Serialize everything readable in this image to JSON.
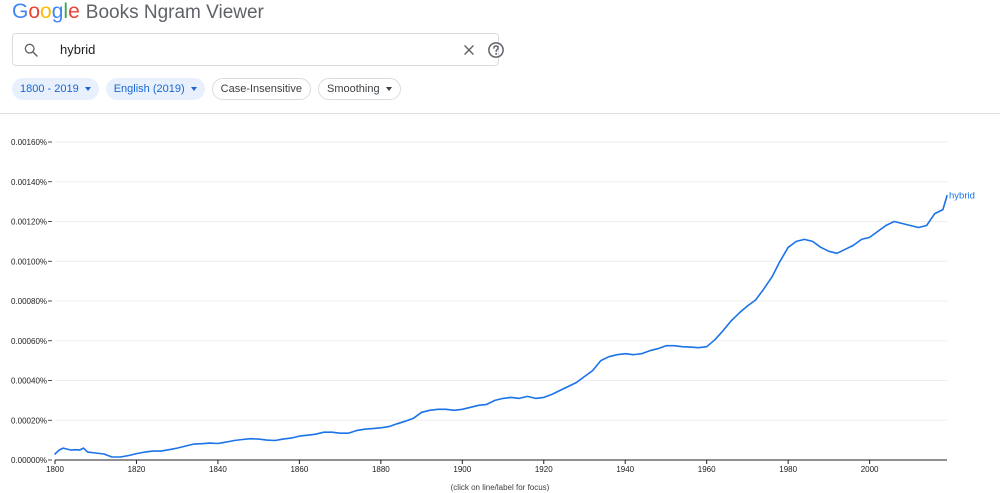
{
  "header": {
    "logo_letters": [
      {
        "ch": "G",
        "color": "#4285f4"
      },
      {
        "ch": "o",
        "color": "#ea4335"
      },
      {
        "ch": "o",
        "color": "#fbbc05"
      },
      {
        "ch": "g",
        "color": "#4285f4"
      },
      {
        "ch": "l",
        "color": "#34a853"
      },
      {
        "ch": "e",
        "color": "#ea4335"
      }
    ],
    "title_rest": "Books Ngram Viewer"
  },
  "search": {
    "query": "hybrid",
    "search_icon": "search-icon",
    "clear_icon": "close-icon",
    "help_icon": "help-icon"
  },
  "filters": {
    "year_range": "1800 - 2019",
    "corpus": "English (2019)",
    "case": "Case-Insensitive",
    "smoothing": "Smoothing"
  },
  "chart_data": {
    "type": "line",
    "title": "",
    "xlabel": "",
    "ylabel": "",
    "xlim": [
      1800,
      2019
    ],
    "ylim": [
      0,
      0.0016
    ],
    "x_ticks": [
      1800,
      1820,
      1840,
      1860,
      1880,
      1900,
      1920,
      1940,
      1960,
      1980,
      2000
    ],
    "y_ticks": [
      0,
      0.0002,
      0.0004,
      0.0006,
      0.0008,
      0.001,
      0.0012,
      0.0014,
      0.0016
    ],
    "y_tick_labels": [
      "0.00000%",
      "0.00020%",
      "0.00040%",
      "0.00060%",
      "0.00080%",
      "0.00100%",
      "0.00120%",
      "0.00140%",
      "0.00160%"
    ],
    "grid": true,
    "line_color": "#1a73e8",
    "series": [
      {
        "name": "hybrid",
        "x": [
          1800,
          1801,
          1802,
          1803,
          1804,
          1805,
          1806,
          1807,
          1808,
          1810,
          1812,
          1814,
          1816,
          1818,
          1820,
          1822,
          1824,
          1826,
          1828,
          1830,
          1832,
          1834,
          1836,
          1838,
          1840,
          1842,
          1844,
          1846,
          1848,
          1850,
          1852,
          1854,
          1856,
          1858,
          1860,
          1862,
          1864,
          1866,
          1868,
          1870,
          1872,
          1874,
          1876,
          1878,
          1880,
          1882,
          1884,
          1886,
          1888,
          1890,
          1892,
          1894,
          1896,
          1898,
          1900,
          1902,
          1904,
          1906,
          1908,
          1910,
          1912,
          1914,
          1916,
          1918,
          1920,
          1922,
          1924,
          1926,
          1928,
          1930,
          1932,
          1934,
          1936,
          1938,
          1940,
          1942,
          1944,
          1946,
          1948,
          1950,
          1952,
          1954,
          1956,
          1958,
          1960,
          1962,
          1964,
          1966,
          1968,
          1970,
          1972,
          1974,
          1976,
          1978,
          1980,
          1982,
          1984,
          1986,
          1988,
          1990,
          1992,
          1994,
          1996,
          1998,
          2000,
          2002,
          2004,
          2006,
          2008,
          2010,
          2012,
          2014,
          2016,
          2018,
          2019
        ],
        "values": [
          3e-05,
          5e-05,
          6e-05,
          5.5e-05,
          5e-05,
          5.2e-05,
          5e-05,
          6e-05,
          4e-05,
          3.5e-05,
          3e-05,
          1.5e-05,
          1.5e-05,
          2.2e-05,
          3.2e-05,
          4e-05,
          4.5e-05,
          4.5e-05,
          5.2e-05,
          6e-05,
          7e-05,
          8e-05,
          8.2e-05,
          8.5e-05,
          8.3e-05,
          9e-05,
          9.8e-05,
          0.000103,
          0.000107,
          0.000105,
          0.0001,
          9.8e-05,
          0.000105,
          0.00011,
          0.00012,
          0.000125,
          0.00013,
          0.00014,
          0.00014,
          0.000135,
          0.000135,
          0.000148,
          0.000155,
          0.000158,
          0.000162,
          0.000168,
          0.000182,
          0.000195,
          0.00021,
          0.00024,
          0.00025,
          0.000255,
          0.000255,
          0.00025,
          0.000255,
          0.000265,
          0.000275,
          0.00028,
          0.0003,
          0.00031,
          0.000315,
          0.00031,
          0.00032,
          0.00031,
          0.000315,
          0.00033,
          0.00035,
          0.00037,
          0.00039,
          0.00042,
          0.00045,
          0.0005,
          0.00052,
          0.00053,
          0.000535,
          0.00053,
          0.000535,
          0.00055,
          0.00056,
          0.000575,
          0.000575,
          0.00057,
          0.000568,
          0.000565,
          0.00057,
          0.000605,
          0.00065,
          0.0007,
          0.00074,
          0.000775,
          0.000805,
          0.00086,
          0.00092,
          0.001,
          0.00107,
          0.0011,
          0.00111,
          0.0011,
          0.00107,
          0.00105,
          0.00104,
          0.00106,
          0.00108,
          0.00111,
          0.00112,
          0.00115,
          0.00118,
          0.0012,
          0.00119,
          0.00118,
          0.00117,
          0.00118,
          0.00124,
          0.00126,
          0.00133
        ]
      }
    ]
  },
  "footnote": "(click on line/label for focus)"
}
